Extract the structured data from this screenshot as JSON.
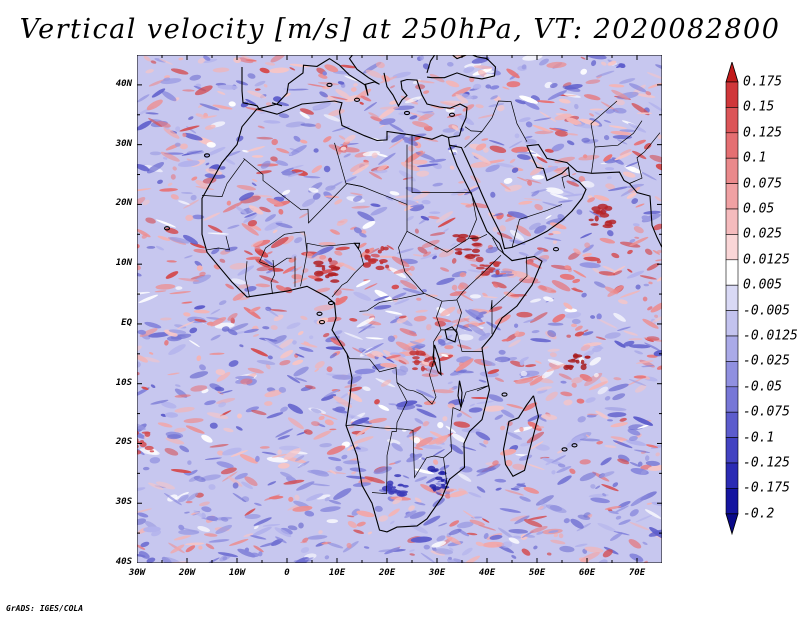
{
  "title": "Vertical velocity [m/s] at 250hPa, VT: 2020082800",
  "credit": "GrADS: IGES/COLA",
  "map": {
    "region": "Africa",
    "lon_range": [
      -30,
      75
    ],
    "lat_range": [
      -40,
      45
    ],
    "lat_labels": [
      {
        "lat": 40,
        "text": "40N"
      },
      {
        "lat": 30,
        "text": "30N"
      },
      {
        "lat": 20,
        "text": "20N"
      },
      {
        "lat": 10,
        "text": "10N"
      },
      {
        "lat": 0,
        "text": "EQ"
      },
      {
        "lat": -10,
        "text": "10S"
      },
      {
        "lat": -20,
        "text": "20S"
      },
      {
        "lat": -30,
        "text": "30S"
      },
      {
        "lat": -40,
        "text": "40S"
      }
    ],
    "lon_labels": [
      {
        "lon": -30,
        "text": "30W"
      },
      {
        "lon": -20,
        "text": "20W"
      },
      {
        "lon": -10,
        "text": "10W"
      },
      {
        "lon": 0,
        "text": "0"
      },
      {
        "lon": 10,
        "text": "10E"
      },
      {
        "lon": 20,
        "text": "20E"
      },
      {
        "lon": 30,
        "text": "30E"
      },
      {
        "lon": 40,
        "text": "40E"
      },
      {
        "lon": 50,
        "text": "50E"
      },
      {
        "lon": 60,
        "text": "60E"
      },
      {
        "lon": 70,
        "text": "70E"
      }
    ]
  },
  "colorbar": {
    "unit": "m/s",
    "levels": [
      "0.175",
      "0.15",
      "0.125",
      "0.1",
      "0.075",
      "0.05",
      "0.025",
      "0.0125",
      "0.005",
      "-0.005",
      "-0.0125",
      "-0.025",
      "-0.05",
      "-0.075",
      "-0.1",
      "-0.125",
      "-0.175",
      "-0.2"
    ],
    "colors": [
      "#c21b1b",
      "#d0373a",
      "#dc5558",
      "#e56f72",
      "#ea898b",
      "#f0a1a3",
      "#f5bbbd",
      "#fad6d7",
      "#ffffff",
      "#d9d9f5",
      "#c3c3ef",
      "#aaaae8",
      "#9090e0",
      "#7777d7",
      "#5c5ccd",
      "#4343c2",
      "#2b2bb4",
      "#1515a0",
      "#0a0a8a"
    ]
  }
}
